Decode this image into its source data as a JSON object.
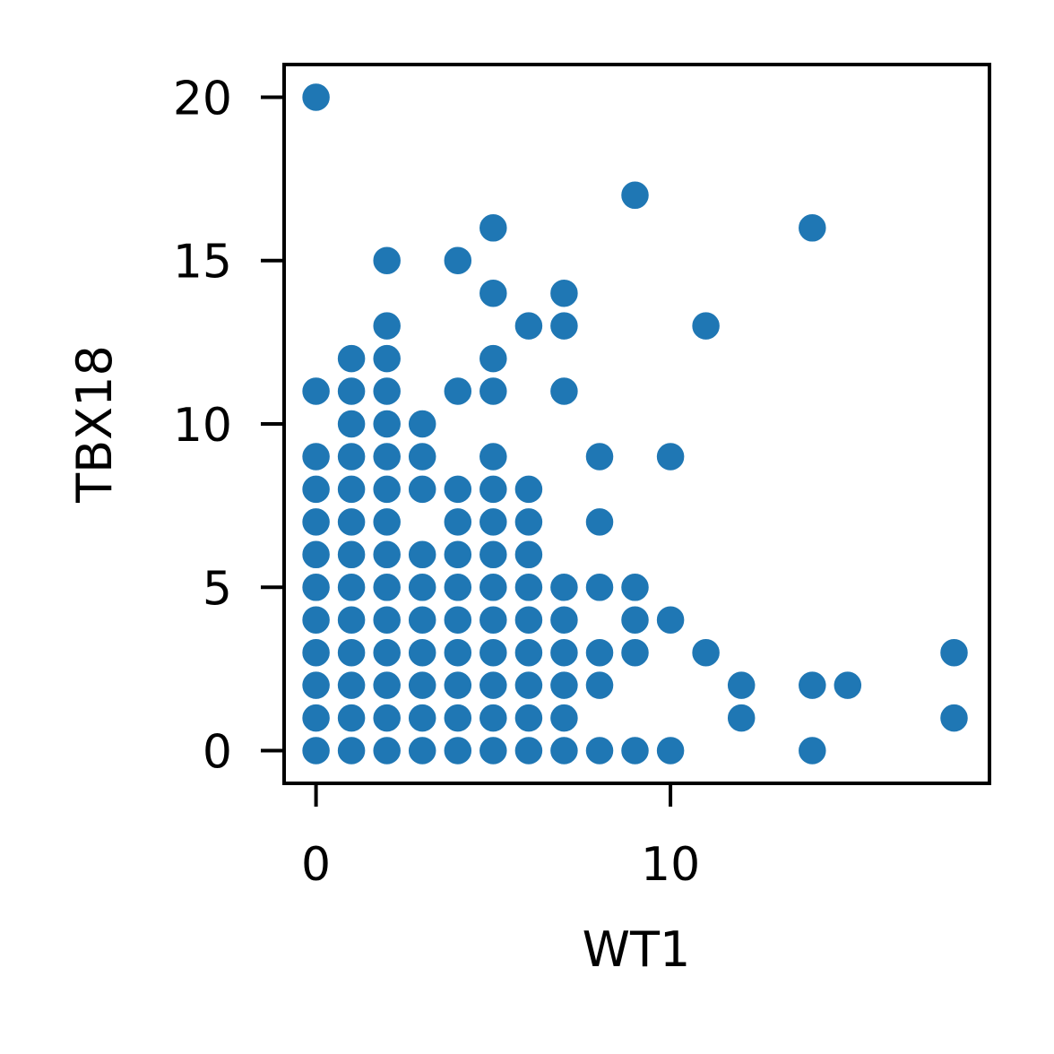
{
  "chart_data": {
    "type": "scatter",
    "xlabel": "WT1",
    "ylabel": "TBX18",
    "xlim": [
      -0.9,
      19.0
    ],
    "ylim": [
      -1.0,
      21.0
    ],
    "xticks": [
      0,
      10
    ],
    "yticks": [
      0,
      5,
      10,
      15,
      20
    ],
    "grid": false,
    "legend": "none",
    "marker_color": "#1f77b4",
    "points": [
      [
        0,
        20
      ],
      [
        0,
        11
      ],
      [
        0,
        9
      ],
      [
        0,
        8
      ],
      [
        0,
        7
      ],
      [
        0,
        6
      ],
      [
        0,
        5
      ],
      [
        0,
        4
      ],
      [
        0,
        3
      ],
      [
        0,
        2
      ],
      [
        0,
        1
      ],
      [
        0,
        0
      ],
      [
        1,
        12
      ],
      [
        1,
        11
      ],
      [
        1,
        10
      ],
      [
        1,
        9
      ],
      [
        1,
        8
      ],
      [
        1,
        7
      ],
      [
        1,
        6
      ],
      [
        1,
        5
      ],
      [
        1,
        4
      ],
      [
        1,
        3
      ],
      [
        1,
        2
      ],
      [
        1,
        1
      ],
      [
        1,
        0
      ],
      [
        2,
        15
      ],
      [
        2,
        13
      ],
      [
        2,
        12
      ],
      [
        2,
        11
      ],
      [
        2,
        10
      ],
      [
        2,
        9
      ],
      [
        2,
        8
      ],
      [
        2,
        7
      ],
      [
        2,
        6
      ],
      [
        2,
        5
      ],
      [
        2,
        4
      ],
      [
        2,
        3
      ],
      [
        2,
        2
      ],
      [
        2,
        1
      ],
      [
        2,
        0
      ],
      [
        3,
        10
      ],
      [
        3,
        9
      ],
      [
        3,
        8
      ],
      [
        3,
        6
      ],
      [
        3,
        5
      ],
      [
        3,
        4
      ],
      [
        3,
        3
      ],
      [
        3,
        2
      ],
      [
        3,
        1
      ],
      [
        3,
        0
      ],
      [
        4,
        15
      ],
      [
        4,
        11
      ],
      [
        4,
        8
      ],
      [
        4,
        7
      ],
      [
        4,
        6
      ],
      [
        4,
        5
      ],
      [
        4,
        4
      ],
      [
        4,
        3
      ],
      [
        4,
        2
      ],
      [
        4,
        1
      ],
      [
        4,
        0
      ],
      [
        5,
        16
      ],
      [
        5,
        14
      ],
      [
        5,
        12
      ],
      [
        5,
        11
      ],
      [
        5,
        9
      ],
      [
        5,
        8
      ],
      [
        5,
        7
      ],
      [
        5,
        6
      ],
      [
        5,
        5
      ],
      [
        5,
        4
      ],
      [
        5,
        3
      ],
      [
        5,
        2
      ],
      [
        5,
        1
      ],
      [
        5,
        0
      ],
      [
        6,
        13
      ],
      [
        6,
        8
      ],
      [
        6,
        7
      ],
      [
        6,
        6
      ],
      [
        6,
        5
      ],
      [
        6,
        4
      ],
      [
        6,
        3
      ],
      [
        6,
        2
      ],
      [
        6,
        1
      ],
      [
        6,
        0
      ],
      [
        7,
        14
      ],
      [
        7,
        13
      ],
      [
        7,
        11
      ],
      [
        7,
        5
      ],
      [
        7,
        4
      ],
      [
        7,
        3
      ],
      [
        7,
        2
      ],
      [
        7,
        1
      ],
      [
        7,
        0
      ],
      [
        8,
        9
      ],
      [
        8,
        7
      ],
      [
        8,
        5
      ],
      [
        8,
        3
      ],
      [
        8,
        2
      ],
      [
        8,
        0
      ],
      [
        9,
        17
      ],
      [
        9,
        5
      ],
      [
        9,
        4
      ],
      [
        9,
        3
      ],
      [
        9,
        0
      ],
      [
        10,
        9
      ],
      [
        10,
        4
      ],
      [
        10,
        0
      ],
      [
        11,
        13
      ],
      [
        11,
        3
      ],
      [
        12,
        2
      ],
      [
        12,
        1
      ],
      [
        14,
        16
      ],
      [
        14,
        2
      ],
      [
        14,
        0
      ],
      [
        15,
        2
      ],
      [
        18,
        3
      ],
      [
        18,
        1
      ]
    ]
  }
}
